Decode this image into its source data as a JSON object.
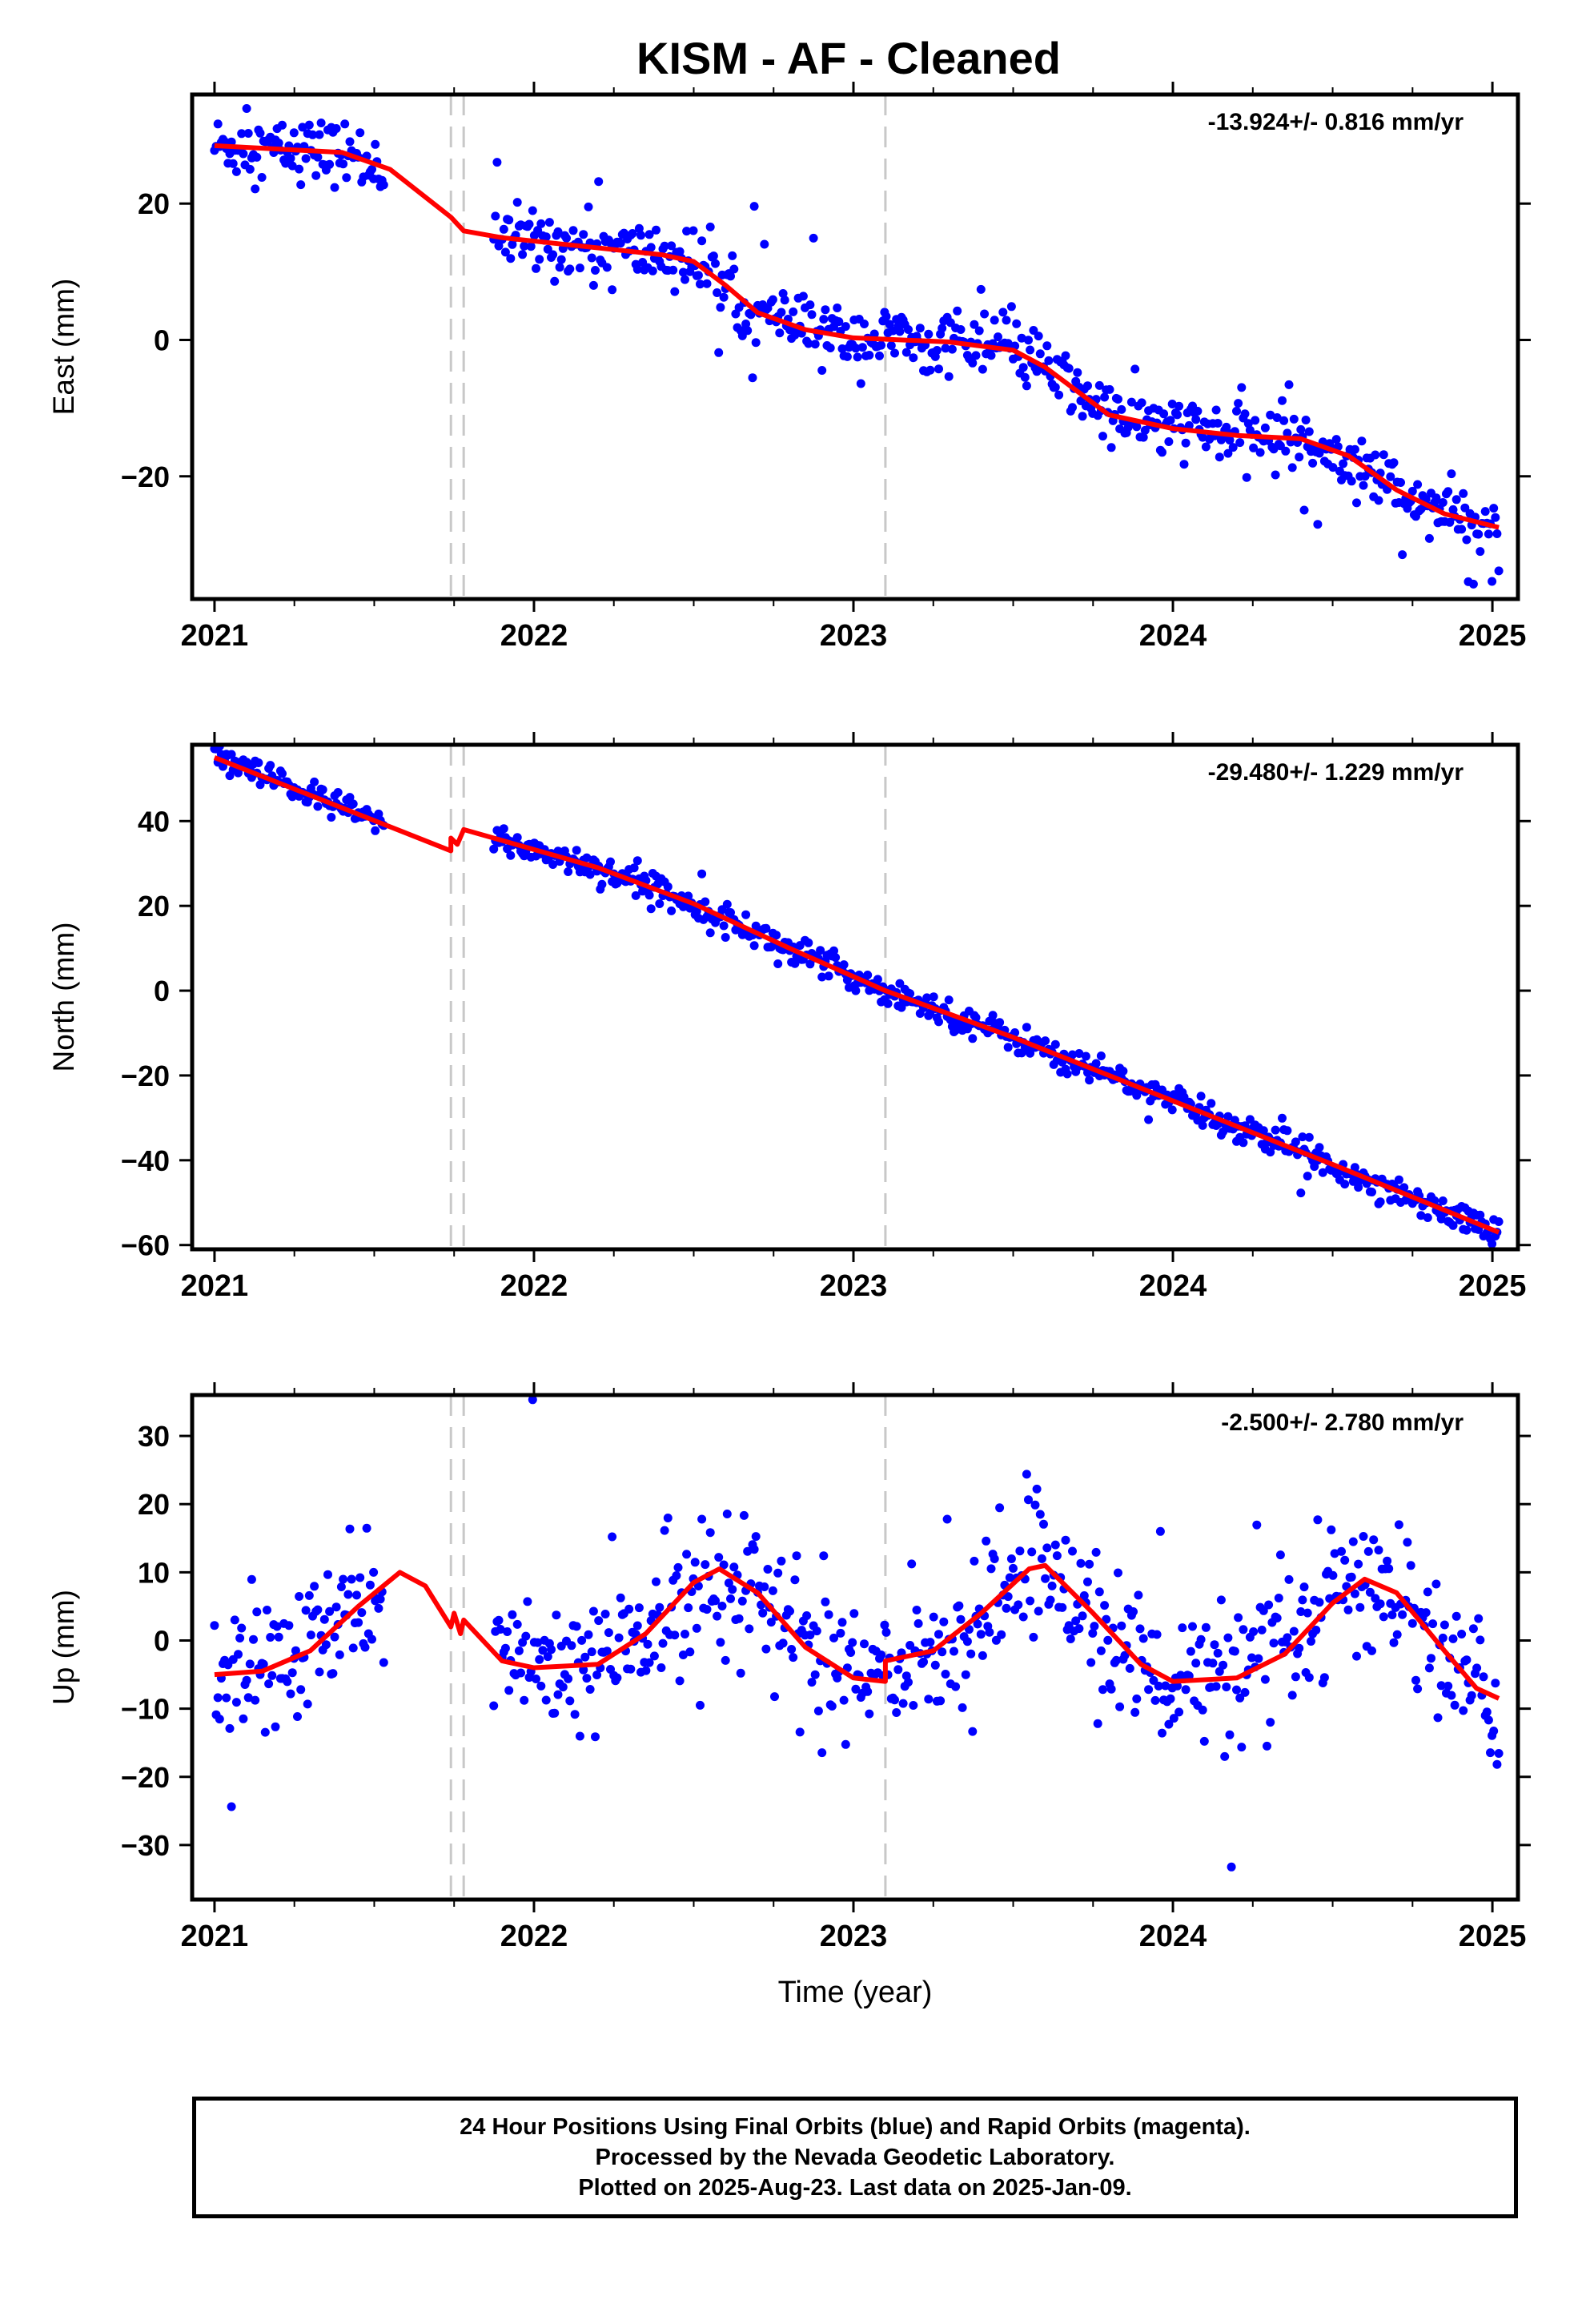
{
  "title": "KISM  - AF - Cleaned",
  "xlabel": "Time (year)",
  "caption": [
    "24 Hour Positions Using Final Orbits (blue) and Rapid Orbits (magenta).",
    "Processed by the Nevada Geodetic Laboratory.",
    "Plotted on 2025-Aug-23. Last data on 2025-Jan-09."
  ],
  "colors": {
    "final_orbits": "#0000ff",
    "rapid_orbits": "#ff00ff",
    "model": "#ff0000",
    "event_line": "#c8c8c8"
  },
  "chart_data": [
    {
      "type": "scatter",
      "component": "East",
      "ylabel": "East (mm)",
      "rate_label": "-13.924+/- 0.816 mm/yr",
      "xlim": [
        2020.93,
        2025.08
      ],
      "ylim": [
        -38,
        36
      ],
      "xticks": [
        2021,
        2022,
        2023,
        2024,
        2025
      ],
      "yticks": [
        -20,
        0,
        20
      ],
      "event_lines": [
        2021.74,
        2021.78,
        2023.1
      ],
      "gaps": [
        [
          2021.53,
          2021.87
        ]
      ],
      "series": [
        {
          "name": "24 Hour Positions Using Final Orbits (blue)",
          "color": "#0000ff",
          "model": [
            [
              2021.0,
              28.5
            ],
            [
              2021.4,
              27.5
            ],
            [
              2021.55,
              25.0
            ],
            [
              2021.74,
              18.0
            ],
            [
              2021.78,
              16.0
            ],
            [
              2021.9,
              15.0
            ],
            [
              2022.1,
              14.0
            ],
            [
              2022.3,
              13.0
            ],
            [
              2022.4,
              12.5
            ],
            [
              2022.5,
              11.5
            ],
            [
              2022.6,
              8.0
            ],
            [
              2022.7,
              4.0
            ],
            [
              2022.85,
              1.5
            ],
            [
              2023.0,
              0.3
            ],
            [
              2023.3,
              -0.3
            ],
            [
              2023.5,
              -1.5
            ],
            [
              2023.6,
              -4.0
            ],
            [
              2023.7,
              -7.5
            ],
            [
              2023.8,
              -11.0
            ],
            [
              2024.0,
              -13.0
            ],
            [
              2024.2,
              -14.0
            ],
            [
              2024.4,
              -14.5
            ],
            [
              2024.55,
              -17.0
            ],
            [
              2024.7,
              -22.0
            ],
            [
              2024.85,
              -25.5
            ],
            [
              2025.02,
              -27.5
            ]
          ],
          "noise": 2.3
        }
      ]
    },
    {
      "type": "scatter",
      "component": "North",
      "ylabel": "North (mm)",
      "rate_label": "-29.480+/- 1.229 mm/yr",
      "xlim": [
        2020.93,
        2025.08
      ],
      "ylim": [
        -61,
        58
      ],
      "xticks": [
        2021,
        2022,
        2023,
        2024,
        2025
      ],
      "yticks": [
        -60,
        -40,
        -20,
        0,
        20,
        40
      ],
      "event_lines": [
        2021.74,
        2021.78,
        2023.1
      ],
      "gaps": [
        [
          2021.53,
          2021.87
        ]
      ],
      "series": [
        {
          "name": "24 Hour Positions Using Final Orbits (blue)",
          "color": "#0000ff",
          "model": [
            [
              2021.0,
              55.0
            ],
            [
              2021.74,
              33.0
            ],
            [
              2021.74,
              36.0
            ],
            [
              2021.76,
              34.5
            ],
            [
              2021.78,
              38.0
            ],
            [
              2022.2,
              29.0
            ],
            [
              2022.5,
              20.5
            ],
            [
              2022.8,
              10.0
            ],
            [
              2023.1,
              0.0
            ],
            [
              2023.5,
              -11.0
            ],
            [
              2024.0,
              -26.0
            ],
            [
              2024.5,
              -41.0
            ],
            [
              2025.02,
              -57.0
            ]
          ],
          "noise": 1.7
        }
      ]
    },
    {
      "type": "scatter",
      "component": "Up",
      "ylabel": "Up (mm)",
      "rate_label": "-2.500+/- 2.780 mm/yr",
      "xlim": [
        2020.93,
        2025.08
      ],
      "ylim": [
        -38,
        36
      ],
      "xticks": [
        2021,
        2022,
        2023,
        2024,
        2025
      ],
      "yticks": [
        -30,
        -20,
        -10,
        0,
        10,
        20,
        30
      ],
      "event_lines": [
        2021.74,
        2021.78,
        2023.1
      ],
      "gaps": [
        [
          2021.53,
          2021.87
        ]
      ],
      "series": [
        {
          "name": "24 Hour Positions Using Final Orbits (blue)",
          "color": "#0000ff",
          "model": [
            [
              2021.0,
              -5.0
            ],
            [
              2021.15,
              -4.5
            ],
            [
              2021.3,
              -1.5
            ],
            [
              2021.45,
              5.0
            ],
            [
              2021.58,
              10.0
            ],
            [
              2021.66,
              8.0
            ],
            [
              2021.74,
              2.0
            ],
            [
              2021.75,
              4.0
            ],
            [
              2021.77,
              1.0
            ],
            [
              2021.78,
              3.0
            ],
            [
              2021.9,
              -3.0
            ],
            [
              2022.0,
              -4.0
            ],
            [
              2022.2,
              -3.5
            ],
            [
              2022.35,
              1.0
            ],
            [
              2022.5,
              8.5
            ],
            [
              2022.58,
              10.5
            ],
            [
              2022.7,
              7.0
            ],
            [
              2022.85,
              -1.0
            ],
            [
              2023.0,
              -5.5
            ],
            [
              2023.1,
              -6.0
            ],
            [
              2023.1,
              -3.0
            ],
            [
              2023.25,
              -1.5
            ],
            [
              2023.4,
              4.0
            ],
            [
              2023.55,
              10.5
            ],
            [
              2023.6,
              11.0
            ],
            [
              2023.75,
              4.0
            ],
            [
              2023.9,
              -3.5
            ],
            [
              2024.0,
              -6.0
            ],
            [
              2024.2,
              -5.5
            ],
            [
              2024.35,
              -2.0
            ],
            [
              2024.5,
              5.5
            ],
            [
              2024.6,
              9.0
            ],
            [
              2024.7,
              7.0
            ],
            [
              2024.85,
              -1.5
            ],
            [
              2024.95,
              -7.0
            ],
            [
              2025.02,
              -8.5
            ]
          ],
          "noise": 5.2
        }
      ]
    }
  ]
}
